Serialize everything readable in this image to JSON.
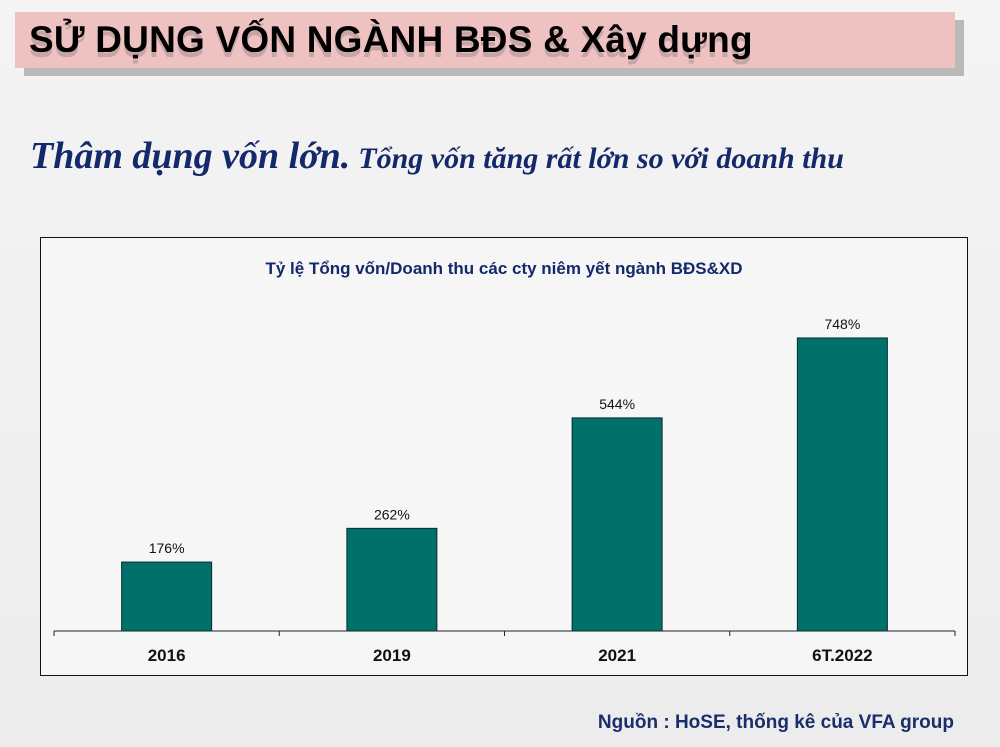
{
  "slide": {
    "title": "SỬ DỤNG VỐN NGÀNH BĐS & Xây dựng",
    "subtitle_main": "Thâm dụng vốn lớn.",
    "subtitle_rest": "Tổng vốn tăng rất lớn so với doanh thu",
    "source": "Nguồn : HoSE, thống kê của VFA group"
  },
  "colors": {
    "bar": "#00706a",
    "title_bg": "#efc2c2",
    "subtitle": "#14296b"
  },
  "chart_data": {
    "type": "bar",
    "title": "Tỷ lệ Tổng vốn/Doanh thu các cty niêm yết ngành BĐS&XD",
    "categories": [
      "2016",
      "2019",
      "2021",
      "6T.2022"
    ],
    "values": [
      176,
      262,
      544,
      748
    ],
    "data_labels": [
      "176%",
      "262%",
      "544%",
      "748%"
    ],
    "xlabel": "",
    "ylabel": "",
    "ylim": [
      0,
      850
    ],
    "grid": false,
    "legend": "none"
  }
}
